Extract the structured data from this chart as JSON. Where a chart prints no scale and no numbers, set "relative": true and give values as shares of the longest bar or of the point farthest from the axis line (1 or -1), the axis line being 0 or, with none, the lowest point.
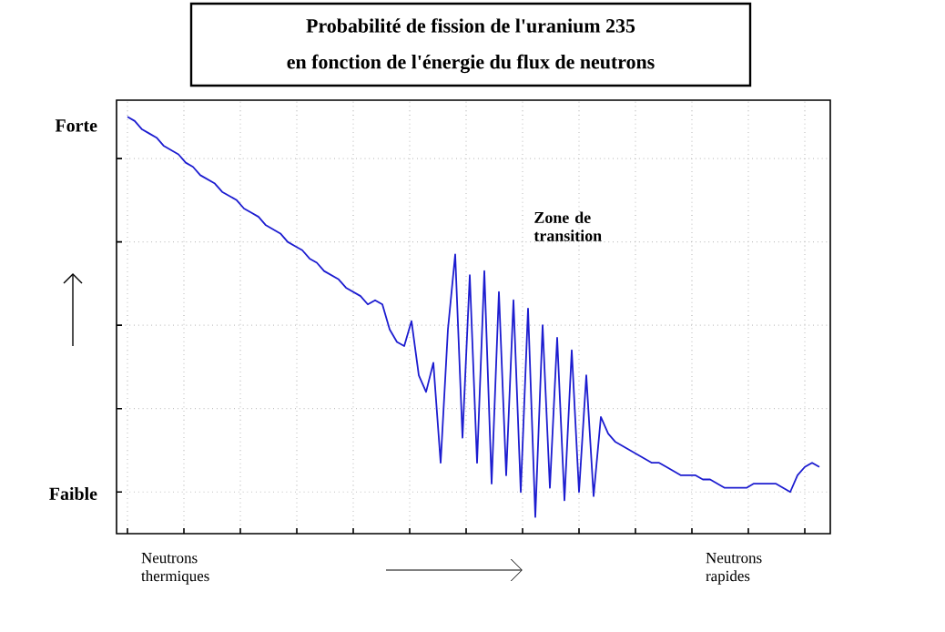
{
  "chart_data": {
    "type": "line",
    "title": "Probabilité de fission de l'uranium 235",
    "subtitle": "en fonction de l'énergie du flux de neutrons",
    "relative": true,
    "grid": true,
    "annotations": [
      "Forte",
      "Faible",
      "Neutrons thermiques",
      "Neutrons rapides",
      "Zone de transition"
    ],
    "categories": [
      null,
      null,
      null,
      null,
      null,
      null,
      null,
      null,
      null,
      null,
      null,
      null,
      null,
      null,
      null,
      null,
      null,
      null,
      null,
      null,
      null,
      null,
      null,
      null,
      null,
      null,
      null,
      null,
      null,
      null,
      null,
      null,
      null,
      null,
      null,
      null,
      null,
      null,
      null,
      null,
      null,
      null,
      null,
      null,
      null,
      null,
      null,
      null,
      null,
      null,
      null,
      null,
      null,
      null,
      null,
      null,
      null,
      null,
      null,
      null,
      null,
      null,
      null,
      null,
      null,
      null,
      null,
      null,
      null,
      null,
      null,
      null,
      null,
      null,
      null,
      null,
      null,
      null,
      null,
      null,
      null,
      null,
      null,
      null,
      null,
      null,
      null,
      null,
      null,
      null,
      null,
      null,
      null,
      null,
      null,
      null
    ],
    "series": [
      {
        "color": "#1c1cd0",
        "values": [
          1.0,
          0.99,
          0.97,
          0.96,
          0.95,
          0.93,
          0.92,
          0.91,
          0.89,
          0.88,
          0.86,
          0.85,
          0.84,
          0.82,
          0.81,
          0.8,
          0.78,
          0.77,
          0.76,
          0.74,
          0.73,
          0.72,
          0.7,
          0.69,
          0.68,
          0.66,
          0.65,
          0.63,
          0.62,
          0.61,
          0.59,
          0.58,
          0.57,
          0.55,
          0.56,
          0.55,
          0.49,
          0.46,
          0.45,
          0.51,
          0.38,
          0.34,
          0.41,
          0.17,
          0.49,
          0.67,
          0.23,
          0.62,
          0.17,
          0.63,
          0.12,
          0.58,
          0.14,
          0.56,
          0.1,
          0.54,
          0.04,
          0.5,
          0.11,
          0.47,
          0.08,
          0.44,
          0.1,
          0.38,
          0.09,
          0.28,
          0.24,
          0.22,
          0.21,
          0.2,
          0.19,
          0.18,
          0.17,
          0.17,
          0.16,
          0.15,
          0.14,
          0.14,
          0.14,
          0.13,
          0.13,
          0.12,
          0.11,
          0.11,
          0.11,
          0.11,
          0.12,
          0.12,
          0.12,
          0.12,
          0.11,
          0.1,
          0.14,
          0.16,
          0.17,
          0.16
        ]
      }
    ]
  }
}
